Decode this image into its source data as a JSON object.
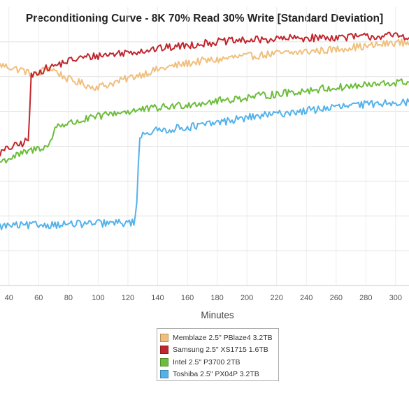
{
  "chart_data": {
    "type": "line",
    "title": "Preconditioning Curve - 8K 70% Read 30% Write [Standard Deviation]",
    "xlabel": "Minutes",
    "ylabel": "",
    "x_ticks": [
      40,
      60,
      80,
      100,
      120,
      140,
      160,
      180,
      200,
      220,
      240,
      260,
      280,
      300
    ],
    "xlim": [
      34,
      309
    ],
    "ylim": [
      0,
      8
    ],
    "y_gridlines": [
      1,
      2,
      3,
      4,
      5,
      6,
      7
    ],
    "grid": true,
    "legend_position": "bottom-center",
    "series": [
      {
        "name": "Memblaze 2.5\" PBlaze4 3.2TB",
        "color": "#f0bf7c",
        "points": [
          [
            34,
            6.34
          ],
          [
            40,
            6.28
          ],
          [
            45,
            6.22
          ],
          [
            50,
            6.18
          ],
          [
            55,
            6.05
          ],
          [
            60,
            6.08
          ],
          [
            65,
            6.25
          ],
          [
            70,
            6.2
          ],
          [
            75,
            6.05
          ],
          [
            80,
            5.92
          ],
          [
            85,
            5.85
          ],
          [
            90,
            5.8
          ],
          [
            95,
            5.7
          ],
          [
            100,
            5.72
          ],
          [
            105,
            5.75
          ],
          [
            110,
            5.82
          ],
          [
            115,
            5.88
          ],
          [
            120,
            5.95
          ],
          [
            125,
            6.02
          ],
          [
            130,
            6.08
          ],
          [
            140,
            6.2
          ],
          [
            150,
            6.3
          ],
          [
            160,
            6.38
          ],
          [
            170,
            6.45
          ],
          [
            180,
            6.48
          ],
          [
            190,
            6.55
          ],
          [
            200,
            6.58
          ],
          [
            210,
            6.62
          ],
          [
            220,
            6.66
          ],
          [
            230,
            6.68
          ],
          [
            240,
            6.72
          ],
          [
            250,
            6.75
          ],
          [
            260,
            6.78
          ],
          [
            270,
            6.85
          ],
          [
            280,
            6.86
          ],
          [
            290,
            6.92
          ],
          [
            300,
            6.98
          ],
          [
            309,
            6.97
          ]
        ]
      },
      {
        "name": "Samsung 2.5\" XS1715 1.6TB",
        "color": "#c0262d",
        "points": [
          [
            34,
            3.8
          ],
          [
            40,
            3.95
          ],
          [
            45,
            4.02
          ],
          [
            50,
            4.1
          ],
          [
            53,
            4.2
          ],
          [
            54,
            5.0
          ],
          [
            55,
            6.0
          ],
          [
            58,
            6.1
          ],
          [
            60,
            6.15
          ],
          [
            70,
            6.3
          ],
          [
            80,
            6.45
          ],
          [
            90,
            6.55
          ],
          [
            100,
            6.6
          ],
          [
            110,
            6.65
          ],
          [
            120,
            6.7
          ],
          [
            130,
            6.75
          ],
          [
            140,
            6.8
          ],
          [
            150,
            6.85
          ],
          [
            160,
            6.9
          ],
          [
            170,
            6.95
          ],
          [
            180,
            7.0
          ],
          [
            190,
            7.02
          ],
          [
            200,
            7.04
          ],
          [
            210,
            7.06
          ],
          [
            220,
            7.08
          ],
          [
            230,
            7.1
          ],
          [
            240,
            7.11
          ],
          [
            250,
            7.12
          ],
          [
            260,
            7.13
          ],
          [
            270,
            7.14
          ],
          [
            280,
            7.15
          ],
          [
            290,
            7.16
          ],
          [
            300,
            7.18
          ],
          [
            309,
            7.16
          ]
        ]
      },
      {
        "name": "Intel 2.5\" P3700 2TB",
        "color": "#6cbd3b",
        "points": [
          [
            34,
            3.55
          ],
          [
            40,
            3.65
          ],
          [
            50,
            3.8
          ],
          [
            60,
            3.95
          ],
          [
            66,
            4.0
          ],
          [
            68,
            4.1
          ],
          [
            70,
            4.4
          ],
          [
            72,
            4.6
          ],
          [
            80,
            4.65
          ],
          [
            90,
            4.75
          ],
          [
            100,
            4.85
          ],
          [
            110,
            4.95
          ],
          [
            120,
            5.0
          ],
          [
            130,
            5.05
          ],
          [
            140,
            5.1
          ],
          [
            150,
            5.15
          ],
          [
            160,
            5.2
          ],
          [
            170,
            5.25
          ],
          [
            180,
            5.3
          ],
          [
            190,
            5.35
          ],
          [
            200,
            5.4
          ],
          [
            210,
            5.45
          ],
          [
            220,
            5.5
          ],
          [
            230,
            5.55
          ],
          [
            240,
            5.6
          ],
          [
            250,
            5.65
          ],
          [
            260,
            5.68
          ],
          [
            270,
            5.72
          ],
          [
            280,
            5.75
          ],
          [
            290,
            5.78
          ],
          [
            300,
            5.82
          ],
          [
            309,
            5.85
          ]
        ]
      },
      {
        "name": "Toshiba 2.5\" PX04P 3.2TB",
        "color": "#54b2ea",
        "points": [
          [
            34,
            1.7
          ],
          [
            40,
            1.72
          ],
          [
            50,
            1.72
          ],
          [
            60,
            1.74
          ],
          [
            70,
            1.75
          ],
          [
            80,
            1.76
          ],
          [
            90,
            1.77
          ],
          [
            100,
            1.78
          ],
          [
            110,
            1.79
          ],
          [
            120,
            1.8
          ],
          [
            124,
            1.82
          ],
          [
            126,
            2.3
          ],
          [
            127,
            3.4
          ],
          [
            128,
            4.3
          ],
          [
            130,
            4.38
          ],
          [
            140,
            4.45
          ],
          [
            150,
            4.5
          ],
          [
            160,
            4.55
          ],
          [
            170,
            4.6
          ],
          [
            180,
            4.68
          ],
          [
            190,
            4.75
          ],
          [
            200,
            4.82
          ],
          [
            210,
            4.88
          ],
          [
            220,
            4.92
          ],
          [
            230,
            4.98
          ],
          [
            240,
            5.02
          ],
          [
            250,
            5.08
          ],
          [
            260,
            5.12
          ],
          [
            270,
            5.16
          ],
          [
            280,
            5.2
          ],
          [
            290,
            5.24
          ],
          [
            300,
            5.28
          ],
          [
            309,
            5.25
          ]
        ]
      }
    ]
  },
  "legend": {
    "items": [
      {
        "label": "Memblaze 2.5\" PBlaze4 3.2TB",
        "color": "#f0bf7c"
      },
      {
        "label": "Samsung 2.5\" XS1715 1.6TB",
        "color": "#c0262d"
      },
      {
        "label": "Intel 2.5\" P3700 2TB",
        "color": "#6cbd3b"
      },
      {
        "label": "Toshiba 2.5\" PX04P 3.2TB",
        "color": "#54b2ea"
      }
    ]
  }
}
